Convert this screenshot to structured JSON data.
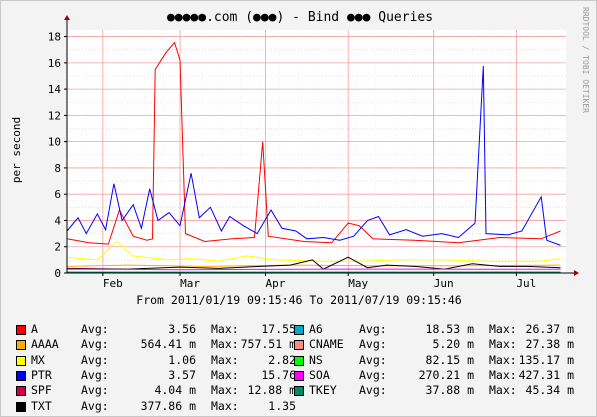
{
  "chart_data": {
    "type": "line",
    "title": "●●●●●.com (●●●) - Bind ●●● Queries",
    "ylabel": "per second",
    "xlabel": "From 2011/01/19 09:15:46 To 2011/07/19 09:15:46",
    "watermark": "RRDTOOL / TOBI OETIKER",
    "ylim": [
      0,
      18.5
    ],
    "yticks": [
      "0",
      "2",
      "4",
      "6",
      "8",
      "10",
      "12",
      "14",
      "16",
      "18"
    ],
    "xticks": [
      {
        "label": "Feb",
        "date": "2011-02-01"
      },
      {
        "label": "Mar",
        "date": "2011-03-01"
      },
      {
        "label": "Apr",
        "date": "2011-04-01"
      },
      {
        "label": "May",
        "date": "2011-05-01"
      },
      {
        "label": "Jun",
        "date": "2011-06-01"
      },
      {
        "label": "Jul",
        "date": "2011-07-01"
      }
    ],
    "x_start": "2011-01-19",
    "x_end": "2011-07-19",
    "grid": true,
    "series": [
      {
        "name": "A",
        "color": "#ff0000",
        "points": [
          [
            "2011-01-19",
            2.6
          ],
          [
            "2011-01-27",
            2.3
          ],
          [
            "2011-02-03",
            2.2
          ],
          [
            "2011-02-07",
            4.8
          ],
          [
            "2011-02-12",
            2.8
          ],
          [
            "2011-02-17",
            2.5
          ],
          [
            "2011-02-19",
            2.6
          ],
          [
            "2011-02-20",
            15.5
          ],
          [
            "2011-02-24",
            16.8
          ],
          [
            "2011-02-27",
            17.55
          ],
          [
            "2011-03-01",
            16.2
          ],
          [
            "2011-03-03",
            3.0
          ],
          [
            "2011-03-10",
            2.4
          ],
          [
            "2011-03-20",
            2.6
          ],
          [
            "2011-03-28",
            2.7
          ],
          [
            "2011-03-31",
            10.0
          ],
          [
            "2011-04-02",
            2.8
          ],
          [
            "2011-04-15",
            2.4
          ],
          [
            "2011-04-25",
            2.3
          ],
          [
            "2011-05-01",
            3.8
          ],
          [
            "2011-05-05",
            3.6
          ],
          [
            "2011-05-10",
            2.6
          ],
          [
            "2011-05-25",
            2.5
          ],
          [
            "2011-06-10",
            2.3
          ],
          [
            "2011-06-25",
            2.7
          ],
          [
            "2011-07-10",
            2.6
          ],
          [
            "2011-07-17",
            3.2
          ]
        ]
      },
      {
        "name": "AAAA",
        "color": "#ffaa00",
        "points": [
          [
            "2011-01-19",
            0.5
          ],
          [
            "2011-02-10",
            0.6
          ],
          [
            "2011-03-10",
            0.5
          ],
          [
            "2011-04-10",
            0.6
          ],
          [
            "2011-05-10",
            0.55
          ],
          [
            "2011-06-10",
            0.55
          ],
          [
            "2011-07-17",
            0.6
          ]
        ]
      },
      {
        "name": "MX",
        "color": "#ffff00",
        "points": [
          [
            "2011-01-19",
            1.2
          ],
          [
            "2011-01-30",
            1.0
          ],
          [
            "2011-02-06",
            2.4
          ],
          [
            "2011-02-12",
            1.3
          ],
          [
            "2011-02-25",
            1.0
          ],
          [
            "2011-03-05",
            1.1
          ],
          [
            "2011-03-15",
            0.9
          ],
          [
            "2011-03-25",
            1.3
          ],
          [
            "2011-04-05",
            1.0
          ],
          [
            "2011-04-20",
            0.9
          ],
          [
            "2011-05-05",
            0.9
          ],
          [
            "2011-05-20",
            1.0
          ],
          [
            "2011-06-05",
            1.0
          ],
          [
            "2011-06-20",
            0.9
          ],
          [
            "2011-07-10",
            0.9
          ],
          [
            "2011-07-17",
            1.1
          ]
        ]
      },
      {
        "name": "PTR",
        "color": "#0000ff",
        "points": [
          [
            "2011-01-19",
            3.2
          ],
          [
            "2011-01-23",
            4.2
          ],
          [
            "2011-01-26",
            3.0
          ],
          [
            "2011-01-30",
            4.5
          ],
          [
            "2011-02-02",
            3.3
          ],
          [
            "2011-02-05",
            6.8
          ],
          [
            "2011-02-08",
            4.0
          ],
          [
            "2011-02-12",
            5.2
          ],
          [
            "2011-02-15",
            3.4
          ],
          [
            "2011-02-18",
            6.4
          ],
          [
            "2011-02-21",
            4.0
          ],
          [
            "2011-02-25",
            4.6
          ],
          [
            "2011-03-01",
            3.6
          ],
          [
            "2011-03-05",
            7.6
          ],
          [
            "2011-03-08",
            4.2
          ],
          [
            "2011-03-12",
            5.0
          ],
          [
            "2011-03-16",
            3.2
          ],
          [
            "2011-03-19",
            4.3
          ],
          [
            "2011-03-24",
            3.6
          ],
          [
            "2011-03-29",
            3.0
          ],
          [
            "2011-04-03",
            4.8
          ],
          [
            "2011-04-07",
            3.4
          ],
          [
            "2011-04-12",
            3.2
          ],
          [
            "2011-04-16",
            2.6
          ],
          [
            "2011-04-22",
            2.7
          ],
          [
            "2011-04-28",
            2.5
          ],
          [
            "2011-05-03",
            2.8
          ],
          [
            "2011-05-08",
            4.0
          ],
          [
            "2011-05-12",
            4.3
          ],
          [
            "2011-05-16",
            2.9
          ],
          [
            "2011-05-22",
            3.3
          ],
          [
            "2011-05-28",
            2.8
          ],
          [
            "2011-06-04",
            3.0
          ],
          [
            "2011-06-10",
            2.7
          ],
          [
            "2011-06-16",
            3.8
          ],
          [
            "2011-06-19",
            15.76
          ],
          [
            "2011-06-20",
            3.0
          ],
          [
            "2011-06-28",
            2.9
          ],
          [
            "2011-07-03",
            3.2
          ],
          [
            "2011-07-10",
            5.8
          ],
          [
            "2011-07-12",
            2.5
          ],
          [
            "2011-07-17",
            2.1
          ]
        ]
      },
      {
        "name": "SPF",
        "color": "#cc0044",
        "points": [
          [
            "2011-01-19",
            0.02
          ],
          [
            "2011-04-01",
            0.02
          ],
          [
            "2011-07-17",
            0.02
          ]
        ]
      },
      {
        "name": "TXT",
        "color": "#000000",
        "points": [
          [
            "2011-01-19",
            0.35
          ],
          [
            "2011-02-10",
            0.3
          ],
          [
            "2011-03-01",
            0.45
          ],
          [
            "2011-03-15",
            0.35
          ],
          [
            "2011-03-30",
            0.5
          ],
          [
            "2011-04-10",
            0.6
          ],
          [
            "2011-04-18",
            1.0
          ],
          [
            "2011-04-22",
            0.3
          ],
          [
            "2011-05-01",
            1.2
          ],
          [
            "2011-05-08",
            0.4
          ],
          [
            "2011-05-15",
            0.6
          ],
          [
            "2011-05-25",
            0.5
          ],
          [
            "2011-06-05",
            0.3
          ],
          [
            "2011-06-15",
            0.7
          ],
          [
            "2011-06-25",
            0.5
          ],
          [
            "2011-07-05",
            0.5
          ],
          [
            "2011-07-17",
            0.4
          ]
        ]
      },
      {
        "name": "A6",
        "color": "#00aacc",
        "points": [
          [
            "2011-01-19",
            0.02
          ],
          [
            "2011-07-17",
            0.02
          ]
        ]
      },
      {
        "name": "CNAME",
        "color": "#ff8888",
        "points": [
          [
            "2011-01-19",
            0.01
          ],
          [
            "2011-07-17",
            0.01
          ]
        ]
      },
      {
        "name": "NS",
        "color": "#00ff00",
        "points": [
          [
            "2011-01-19",
            0.08
          ],
          [
            "2011-07-17",
            0.09
          ]
        ]
      },
      {
        "name": "SOA",
        "color": "#ff00ff",
        "points": [
          [
            "2011-01-19",
            0.3
          ],
          [
            "2011-03-01",
            0.25
          ],
          [
            "2011-05-01",
            0.3
          ],
          [
            "2011-07-17",
            0.28
          ]
        ]
      },
      {
        "name": "TKEY",
        "color": "#008866",
        "points": [
          [
            "2011-01-19",
            0.04
          ],
          [
            "2011-07-17",
            0.04
          ]
        ]
      }
    ]
  },
  "legend": {
    "avg_label": "Avg:",
    "max_label": "Max:",
    "rows": [
      [
        {
          "name": "A",
          "color": "#ff0000",
          "avg": "3.56",
          "max": "17.55"
        },
        {
          "name": "A6",
          "color": "#00aacc",
          "avg": "18.53 m",
          "max": "26.37 m"
        }
      ],
      [
        {
          "name": "AAAA",
          "color": "#ffaa00",
          "avg": "564.41 m",
          "max": "757.51 m"
        },
        {
          "name": "CNAME",
          "color": "#ff8888",
          "avg": "5.20 m",
          "max": "27.38 m"
        }
      ],
      [
        {
          "name": "MX",
          "color": "#ffff00",
          "avg": "1.06",
          "max": "2.82"
        },
        {
          "name": "NS",
          "color": "#00ff00",
          "avg": "82.15 m",
          "max": "135.17 m"
        }
      ],
      [
        {
          "name": "PTR",
          "color": "#0000ff",
          "avg": "3.57",
          "max": "15.76"
        },
        {
          "name": "SOA",
          "color": "#ff00ff",
          "avg": "270.21 m",
          "max": "427.31 m"
        }
      ],
      [
        {
          "name": "SPF",
          "color": "#cc0044",
          "avg": "4.04 m",
          "max": "12.88 m"
        },
        {
          "name": "TKEY",
          "color": "#008866",
          "avg": "37.88 m",
          "max": "45.34 m"
        }
      ],
      [
        {
          "name": "TXT",
          "color": "#000000",
          "avg": "377.86 m",
          "max": "1.35"
        }
      ]
    ]
  }
}
